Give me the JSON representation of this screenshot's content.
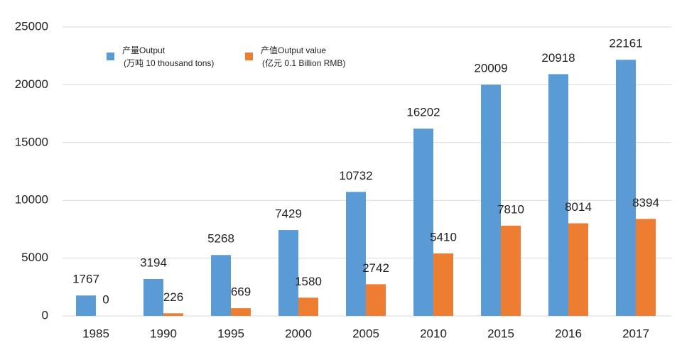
{
  "chart_data": {
    "type": "bar",
    "categories": [
      "1985",
      "1990",
      "1995",
      "2000",
      "2005",
      "2010",
      "2015",
      "2016",
      "2017"
    ],
    "series": [
      {
        "name": "产量Output",
        "unit": "(万吨 10 thousand tons)",
        "color": "#5b9bd5",
        "values": [
          1767,
          3194,
          5268,
          7429,
          10732,
          16202,
          20009,
          20918,
          22161
        ]
      },
      {
        "name": "产值Output value",
        "unit": "(亿元 0.1 Billion RMB)",
        "color": "#ed7d31",
        "values": [
          0,
          226,
          669,
          1580,
          2742,
          5410,
          7810,
          8014,
          8394
        ]
      }
    ],
    "ylim": [
      0,
      25000
    ],
    "yticks": [
      0,
      5000,
      10000,
      15000,
      20000,
      25000
    ],
    "grid": true
  }
}
